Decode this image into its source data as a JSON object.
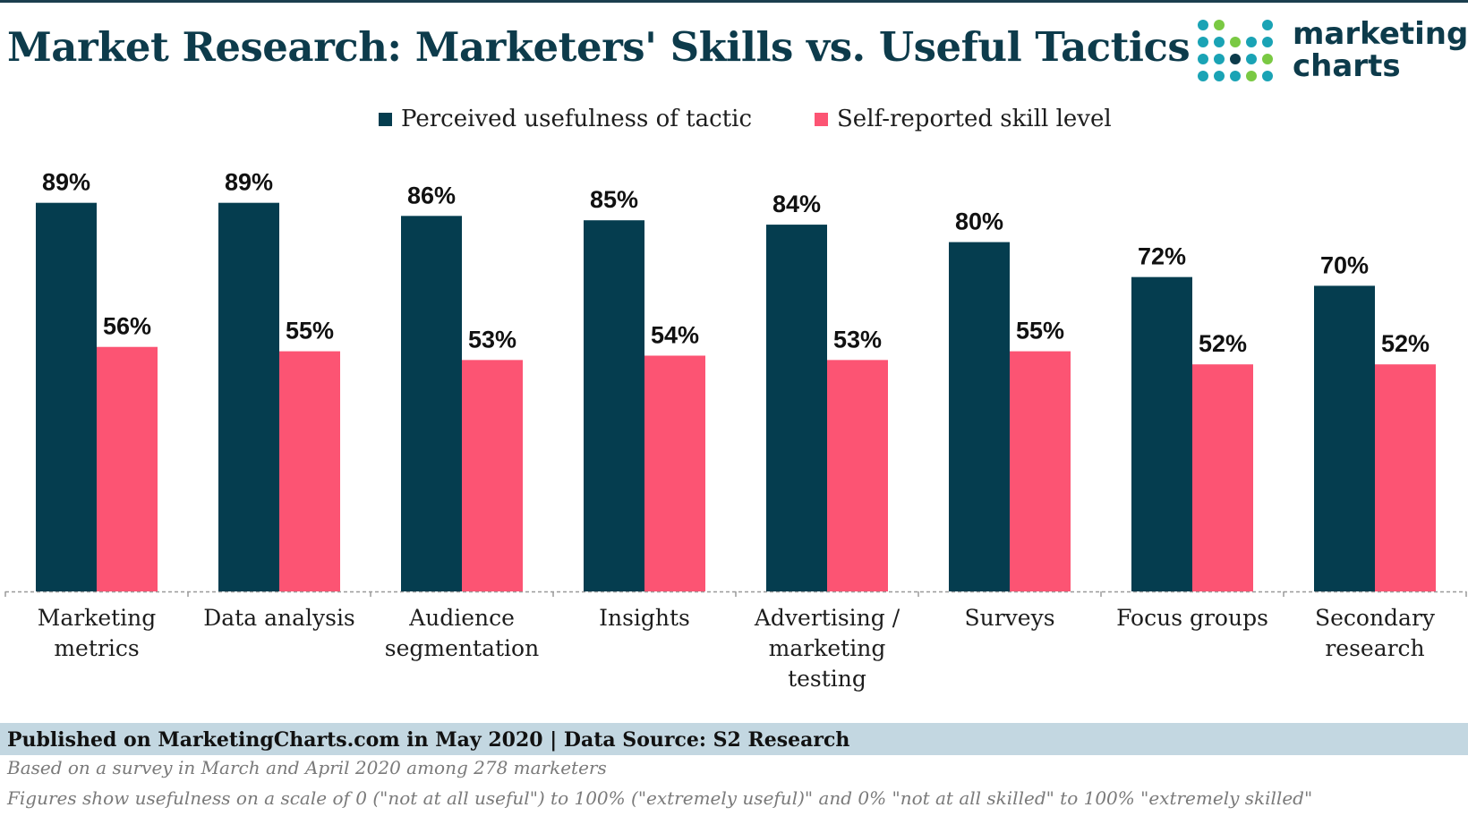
{
  "title": "Market Research: Marketers' Skills vs. Useful Tactics",
  "logo": {
    "line1": "marketing",
    "line2": "charts"
  },
  "colors": {
    "usefulness": "#053d4f",
    "skill": "#fc5473",
    "title": "#0d3b4b",
    "footer_band": "#c3d7e1"
  },
  "chart_data": {
    "type": "bar",
    "categories": [
      "Marketing metrics",
      "Data analysis",
      "Audience segmentation",
      "Insights",
      "Advertising / marketing testing",
      "Surveys",
      "Focus groups",
      "Secondary research"
    ],
    "category_lines": [
      [
        "Marketing",
        "metrics"
      ],
      [
        "Data analysis"
      ],
      [
        "Audience",
        "segmentation"
      ],
      [
        "Insights"
      ],
      [
        "Advertising /",
        "marketing",
        "testing"
      ],
      [
        "Surveys"
      ],
      [
        "Focus groups"
      ],
      [
        "Secondary",
        "research"
      ]
    ],
    "series": [
      {
        "name": "Perceived usefulness of tactic",
        "values": [
          89,
          89,
          86,
          85,
          84,
          80,
          72,
          70
        ],
        "labels": [
          "89%",
          "89%",
          "86%",
          "85%",
          "84%",
          "80%",
          "72%",
          "70%"
        ]
      },
      {
        "name": "Self-reported skill level",
        "values": [
          56,
          55,
          53,
          54,
          53,
          55,
          52,
          52
        ],
        "labels": [
          "56%",
          "55%",
          "53%",
          "54%",
          "53%",
          "55%",
          "52%",
          "52%"
        ]
      }
    ],
    "ylim": [
      0,
      100
    ],
    "legend_position": "top-center",
    "grid": false
  },
  "footer": {
    "published": "Published on MarketingCharts.com in May 2020 | Data Source: S2 Research",
    "note1": "Based on a survey in March and April 2020 among 278 marketers",
    "note2": "Figures show usefulness on a scale of 0 (\"not at all useful\") to 100% (\"extremely useful)\" and 0% \"not at all skilled\" to 100% \"extremely skilled\""
  }
}
